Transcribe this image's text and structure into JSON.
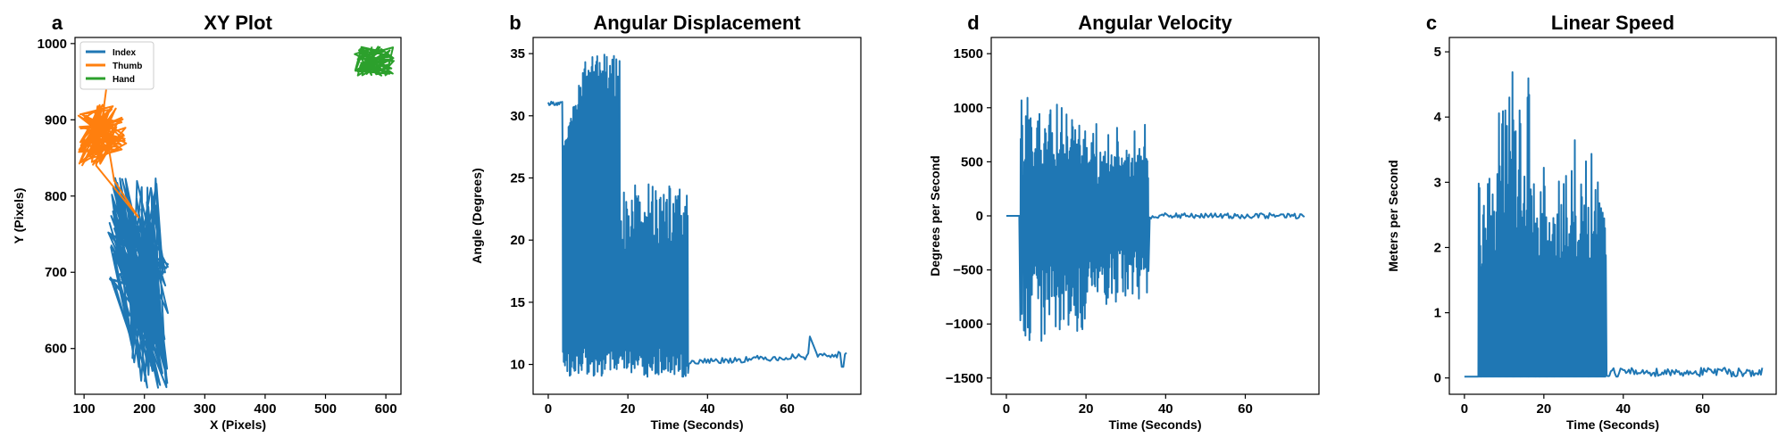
{
  "figure": {
    "colors": {
      "blue": "#1f77b4",
      "orange": "#ff7f0e",
      "green": "#2ca02c"
    }
  },
  "chart_data": [
    {
      "letter": "a",
      "type": "line",
      "title": "XY Plot",
      "xlabel": "X (Pixels)",
      "ylabel": "Y (Pixels)",
      "xlim": [
        85,
        625
      ],
      "ylim": [
        540,
        1008
      ],
      "xticks": [
        100,
        200,
        300,
        400,
        500,
        600
      ],
      "yticks": [
        600,
        700,
        800,
        900,
        1000
      ],
      "legend": "top-left",
      "series": [
        {
          "name": "Index",
          "color": "#1f77b4",
          "kind": "xy_index",
          "note_range": {
            "x": [
              140,
              240
            ],
            "y": [
              548,
              825
            ]
          }
        },
        {
          "name": "Thumb",
          "color": "#ff7f0e",
          "kind": "xy_thumb",
          "note_range": {
            "x": [
              90,
              190
            ],
            "y": [
              770,
              960
            ]
          }
        },
        {
          "name": "Hand",
          "color": "#2ca02c",
          "kind": "xy_hand",
          "note_range": {
            "x": [
              545,
              615
            ],
            "y": [
              955,
              995
            ]
          }
        }
      ]
    },
    {
      "letter": "b",
      "type": "line",
      "title": "Angular Displacement",
      "xlabel": "Time (Seconds)",
      "ylabel": "Angle (Degrees)",
      "xlim": [
        -3.8,
        78.5
      ],
      "ylim": [
        7.6,
        36.3
      ],
      "xticks": [
        0,
        20,
        40,
        60
      ],
      "yticks": [
        10,
        15,
        20,
        25,
        30,
        35
      ],
      "series": [
        {
          "color": "#1f77b4",
          "kind": "angle",
          "keypoints": [
            [
              0,
              31
            ],
            [
              3.5,
              31
            ],
            [
              4,
              10
            ],
            [
              10,
              35
            ],
            [
              18,
              34
            ],
            [
              35,
              10
            ],
            [
              50,
              10.3
            ],
            [
              64,
              10.8
            ],
            [
              66,
              12.4
            ],
            [
              75,
              10.8
            ]
          ]
        }
      ]
    },
    {
      "letter": "d",
      "type": "line",
      "title": "Angular Velocity",
      "xlabel": "Time (Seconds)",
      "ylabel": "Degrees per Second",
      "xlim": [
        -3.8,
        78.5
      ],
      "ylim": [
        -1650,
        1650
      ],
      "xticks": [
        0,
        20,
        40,
        60
      ],
      "yticks": [
        -1500,
        -1000,
        -500,
        0,
        500,
        1000,
        1500
      ],
      "series": [
        {
          "color": "#1f77b4",
          "kind": "velocity",
          "keypoints": [
            [
              0,
              0
            ],
            [
              3.5,
              0
            ],
            [
              13.5,
              1510
            ],
            [
              13.8,
              -1500
            ],
            [
              35.5,
              550
            ],
            [
              36,
              0
            ],
            [
              75,
              0
            ]
          ]
        }
      ]
    },
    {
      "letter": "c",
      "type": "line",
      "title": "Linear Speed",
      "xlabel": "Time (Seconds)",
      "ylabel": "Meters per Second",
      "xlim": [
        -3.8,
        78.5
      ],
      "ylim": [
        -0.25,
        5.22
      ],
      "xticks": [
        0,
        20,
        40,
        60
      ],
      "yticks": [
        0,
        1,
        2,
        3,
        4,
        5
      ],
      "series": [
        {
          "color": "#1f77b4",
          "kind": "speed",
          "keypoints": [
            [
              0,
              0.02
            ],
            [
              3.5,
              0.02
            ],
            [
              13.5,
              4.97
            ],
            [
              35.5,
              2.6
            ],
            [
              36,
              0.1
            ],
            [
              75,
              0.05
            ]
          ]
        }
      ]
    }
  ]
}
